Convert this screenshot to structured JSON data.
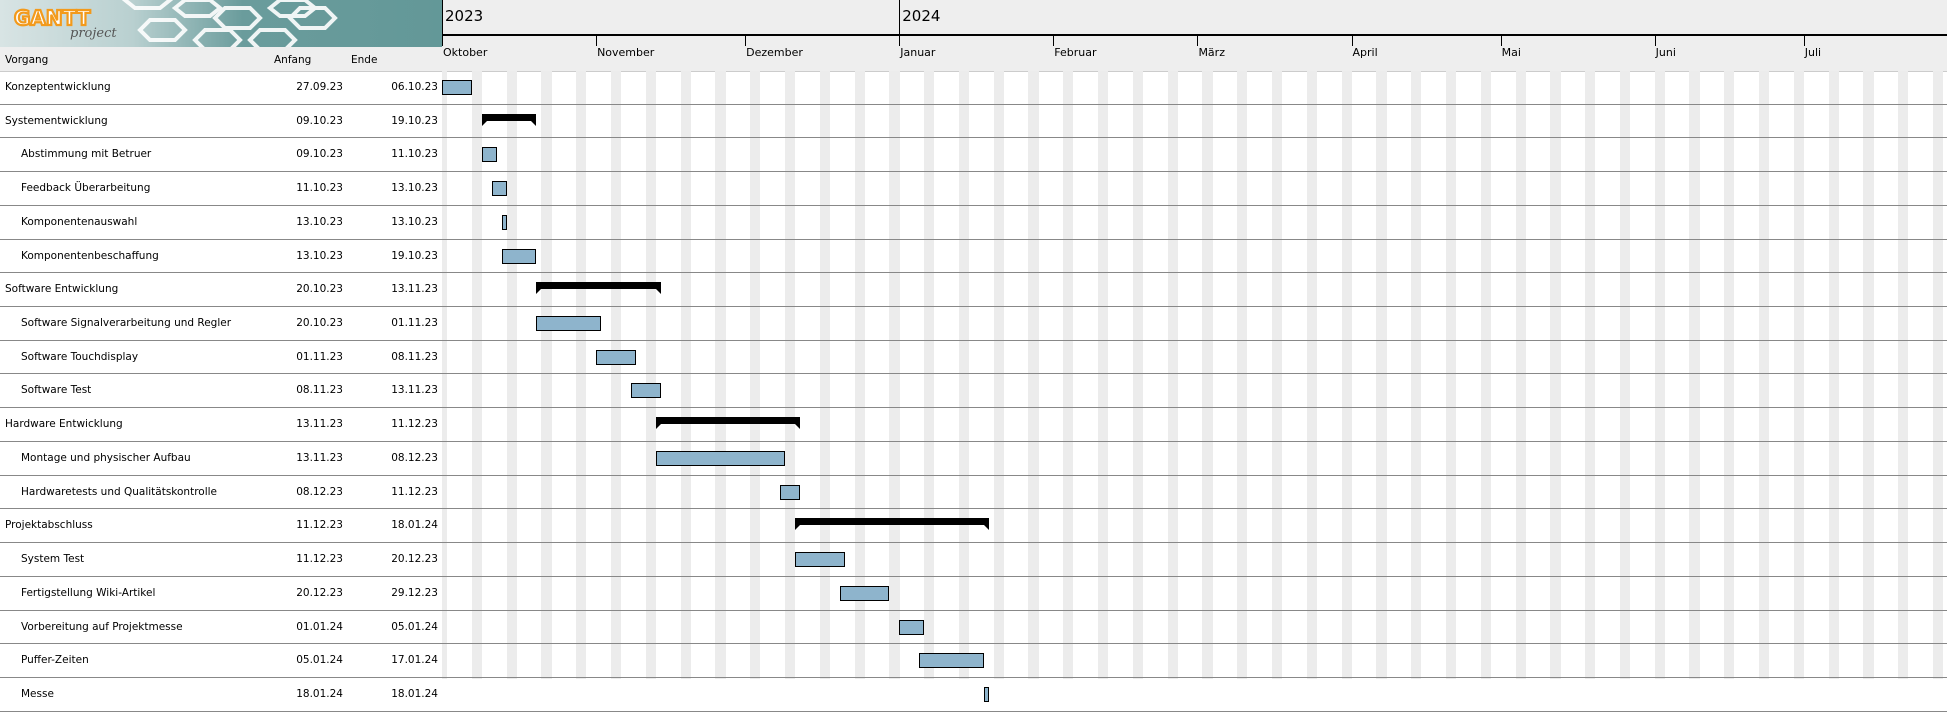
{
  "app": {
    "logo_text": "GANTT project"
  },
  "columns": {
    "name": "Vorgang",
    "start": "Anfang",
    "end": "Ende"
  },
  "timeline": {
    "years": [
      {
        "label": "2023",
        "date": "2023-10-01"
      },
      {
        "label": "2024",
        "date": "2024-01-01"
      }
    ],
    "months": [
      {
        "label": "Oktober",
        "date": "2023-10-01"
      },
      {
        "label": "November",
        "date": "2023-11-01"
      },
      {
        "label": "Dezember",
        "date": "2023-12-01"
      },
      {
        "label": "Januar",
        "date": "2024-01-01"
      },
      {
        "label": "Februar",
        "date": "2024-02-01"
      },
      {
        "label": "März",
        "date": "2024-03-01"
      },
      {
        "label": "April",
        "date": "2024-04-01"
      },
      {
        "label": "Mai",
        "date": "2024-05-01"
      },
      {
        "label": "Juni",
        "date": "2024-06-01"
      },
      {
        "label": "Juli",
        "date": "2024-07-01"
      }
    ]
  },
  "colors": {
    "task_bar": "#8eb4cc",
    "summary_bar": "#000000",
    "weekend": "#ececec"
  },
  "tasks": [
    {
      "name": "Konzeptentwicklung",
      "start": "27.09.23",
      "end": "06.10.23",
      "level": 0,
      "summary": false
    },
    {
      "name": "Systementwicklung",
      "start": "09.10.23",
      "end": "19.10.23",
      "level": 0,
      "summary": true
    },
    {
      "name": "Abstimmung mit Betruer",
      "start": "09.10.23",
      "end": "11.10.23",
      "level": 1,
      "summary": false
    },
    {
      "name": "Feedback Überarbeitung",
      "start": "11.10.23",
      "end": "13.10.23",
      "level": 1,
      "summary": false
    },
    {
      "name": "Komponentenauswahl",
      "start": "13.10.23",
      "end": "13.10.23",
      "level": 1,
      "summary": false
    },
    {
      "name": "Komponentenbeschaffung",
      "start": "13.10.23",
      "end": "19.10.23",
      "level": 1,
      "summary": false
    },
    {
      "name": "Software Entwicklung",
      "start": "20.10.23",
      "end": "13.11.23",
      "level": 0,
      "summary": true
    },
    {
      "name": "Software Signalverarbeitung und Regler",
      "start": "20.10.23",
      "end": "01.11.23",
      "level": 1,
      "summary": false
    },
    {
      "name": "Software Touchdisplay",
      "start": "01.11.23",
      "end": "08.11.23",
      "level": 1,
      "summary": false
    },
    {
      "name": "Software Test",
      "start": "08.11.23",
      "end": "13.11.23",
      "level": 1,
      "summary": false
    },
    {
      "name": "Hardware Entwicklung",
      "start": "13.11.23",
      "end": "11.12.23",
      "level": 0,
      "summary": true
    },
    {
      "name": "Montage und physischer Aufbau",
      "start": "13.11.23",
      "end": "08.12.23",
      "level": 1,
      "summary": false
    },
    {
      "name": "Hardwaretests und Qualitätskontrolle",
      "start": "08.12.23",
      "end": "11.12.23",
      "level": 1,
      "summary": false
    },
    {
      "name": "Projektabschluss",
      "start": "11.12.23",
      "end": "18.01.24",
      "level": 0,
      "summary": true
    },
    {
      "name": "System Test",
      "start": "11.12.23",
      "end": "20.12.23",
      "level": 1,
      "summary": false
    },
    {
      "name": "Fertigstellung Wiki-Artikel",
      "start": "20.12.23",
      "end": "29.12.23",
      "level": 1,
      "summary": false
    },
    {
      "name": "Vorbereitung auf Projektmesse",
      "start": "01.01.24",
      "end": "05.01.24",
      "level": 1,
      "summary": false
    },
    {
      "name": "Puffer-Zeiten",
      "start": "05.01.24",
      "end": "17.01.24",
      "level": 1,
      "summary": false
    },
    {
      "name": "Messe",
      "start": "18.01.24",
      "end": "18.01.24",
      "level": 1,
      "summary": false
    }
  ]
}
